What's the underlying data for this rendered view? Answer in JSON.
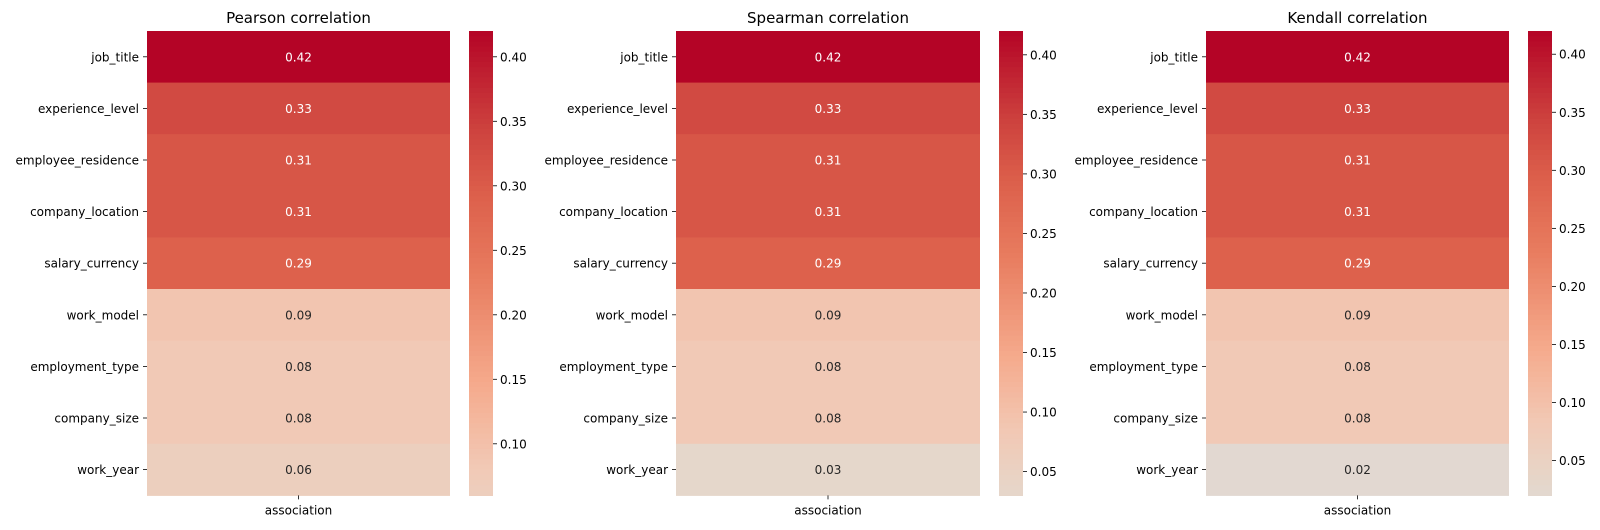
{
  "chart_data": [
    {
      "type": "heatmap",
      "title": "Pearson correlation",
      "xlabel": "association",
      "categories": [
        "job_title",
        "experience_level",
        "employee_residence",
        "company_location",
        "salary_currency",
        "work_model",
        "employment_type",
        "company_size",
        "work_year"
      ],
      "values": [
        "0.42",
        "0.33",
        "0.31",
        "0.31",
        "0.29",
        "0.09",
        "0.08",
        "0.08",
        "0.06"
      ],
      "colorbar": {
        "min": 0.06,
        "max": 0.42,
        "ticks": [
          "0.10",
          "0.15",
          "0.20",
          "0.25",
          "0.30",
          "0.35",
          "0.40"
        ]
      }
    },
    {
      "type": "heatmap",
      "title": "Spearman correlation",
      "xlabel": "association",
      "categories": [
        "job_title",
        "experience_level",
        "employee_residence",
        "company_location",
        "salary_currency",
        "work_model",
        "employment_type",
        "company_size",
        "work_year"
      ],
      "values": [
        "0.42",
        "0.33",
        "0.31",
        "0.31",
        "0.29",
        "0.09",
        "0.08",
        "0.08",
        "0.03"
      ],
      "colorbar": {
        "min": 0.03,
        "max": 0.42,
        "ticks": [
          "0.05",
          "0.10",
          "0.15",
          "0.20",
          "0.25",
          "0.30",
          "0.35",
          "0.40"
        ]
      }
    },
    {
      "type": "heatmap",
      "title": "Kendall correlation",
      "xlabel": "association",
      "categories": [
        "job_title",
        "experience_level",
        "employee_residence",
        "company_location",
        "salary_currency",
        "work_model",
        "employment_type",
        "company_size",
        "work_year"
      ],
      "values": [
        "0.42",
        "0.33",
        "0.31",
        "0.31",
        "0.29",
        "0.09",
        "0.08",
        "0.08",
        "0.02"
      ],
      "colorbar": {
        "min": 0.02,
        "max": 0.42,
        "ticks": [
          "0.05",
          "0.10",
          "0.15",
          "0.20",
          "0.25",
          "0.30",
          "0.35",
          "0.40"
        ]
      }
    }
  ],
  "colormap": "coolwarm",
  "colorbar_scale_min": 0.0
}
